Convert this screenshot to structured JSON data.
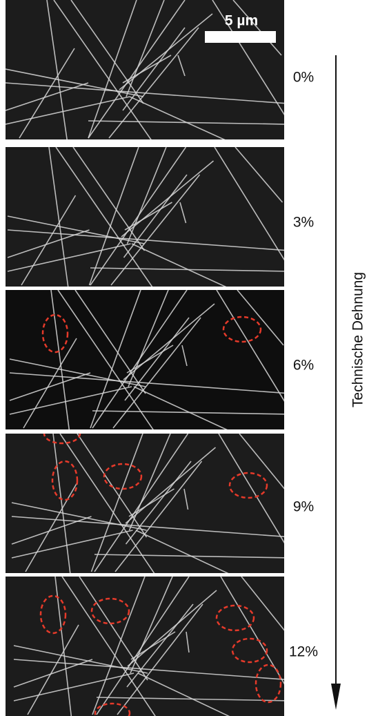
{
  "scale_bar": {
    "label": "5 µm"
  },
  "panels": [
    {
      "strain_label": "0%"
    },
    {
      "strain_label": "3%"
    },
    {
      "strain_label": "6%"
    },
    {
      "strain_label": "9%"
    },
    {
      "strain_label": "12%"
    }
  ],
  "axis_label": "Technische Dehnung"
}
